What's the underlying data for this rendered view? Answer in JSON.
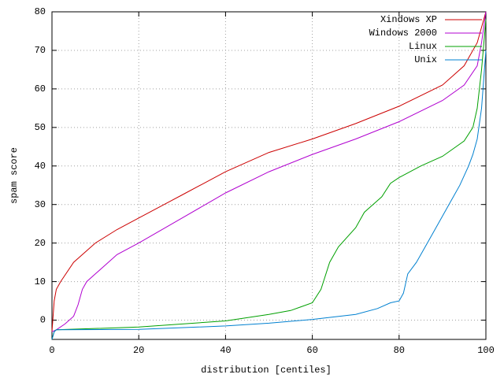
{
  "chart_data": {
    "type": "line",
    "xlabel": "distribution [centiles]",
    "ylabel": "spam score",
    "xlim": [
      0,
      100
    ],
    "ylim": [
      -5,
      80
    ],
    "xticks": [
      0,
      20,
      40,
      60,
      80,
      100
    ],
    "yticks": [
      0,
      10,
      20,
      30,
      40,
      50,
      60,
      70,
      80
    ],
    "grid": true,
    "legend": "top-right",
    "series": [
      {
        "name": "Xindows XP",
        "color": "#cc0000",
        "x": [
          0,
          0.5,
          1,
          2,
          5,
          10,
          15,
          20,
          30,
          40,
          50,
          60,
          70,
          80,
          90,
          95,
          98,
          99,
          100
        ],
        "values": [
          -3,
          5,
          8,
          10,
          15,
          20,
          23.5,
          26.5,
          32.5,
          38.5,
          43.5,
          47,
          51,
          55.5,
          61,
          66,
          72,
          76,
          80
        ]
      },
      {
        "name": "Windows 2000",
        "color": "#b000d0",
        "x": [
          0,
          1,
          3,
          5,
          6,
          7,
          8,
          10,
          15,
          20,
          30,
          40,
          50,
          60,
          70,
          80,
          90,
          95,
          98,
          99,
          100
        ],
        "values": [
          -3,
          -2.5,
          -1,
          1,
          4,
          8,
          10,
          12,
          17,
          20,
          26.5,
          33,
          38.5,
          43,
          47,
          51.5,
          57,
          61,
          66,
          72,
          80
        ]
      },
      {
        "name": "Linux",
        "color": "#00a000",
        "x": [
          0,
          0.5,
          1,
          20,
          40,
          50,
          55,
          60,
          62,
          64,
          66,
          70,
          72,
          76,
          78,
          80,
          85,
          90,
          95,
          97,
          98,
          99,
          100
        ],
        "values": [
          -5,
          -3,
          -2.5,
          -1.8,
          -0.2,
          1.5,
          2.5,
          4.5,
          8,
          15,
          19,
          24,
          28,
          32,
          35.5,
          37,
          40,
          42.5,
          46.5,
          50,
          55,
          65,
          78
        ]
      },
      {
        "name": "Unix",
        "color": "#0080d0",
        "x": [
          0,
          0.5,
          1,
          20,
          40,
          50,
          60,
          70,
          75,
          78,
          80,
          81,
          82,
          84,
          86,
          88,
          90,
          92,
          94,
          96,
          97,
          98,
          99,
          100
        ],
        "values": [
          -5,
          -3,
          -2.5,
          -2.4,
          -1.5,
          -0.8,
          0.2,
          1.5,
          3,
          4.5,
          5,
          7,
          12,
          15,
          19,
          23,
          27,
          31,
          35,
          40,
          43,
          47,
          55,
          70
        ]
      }
    ]
  }
}
